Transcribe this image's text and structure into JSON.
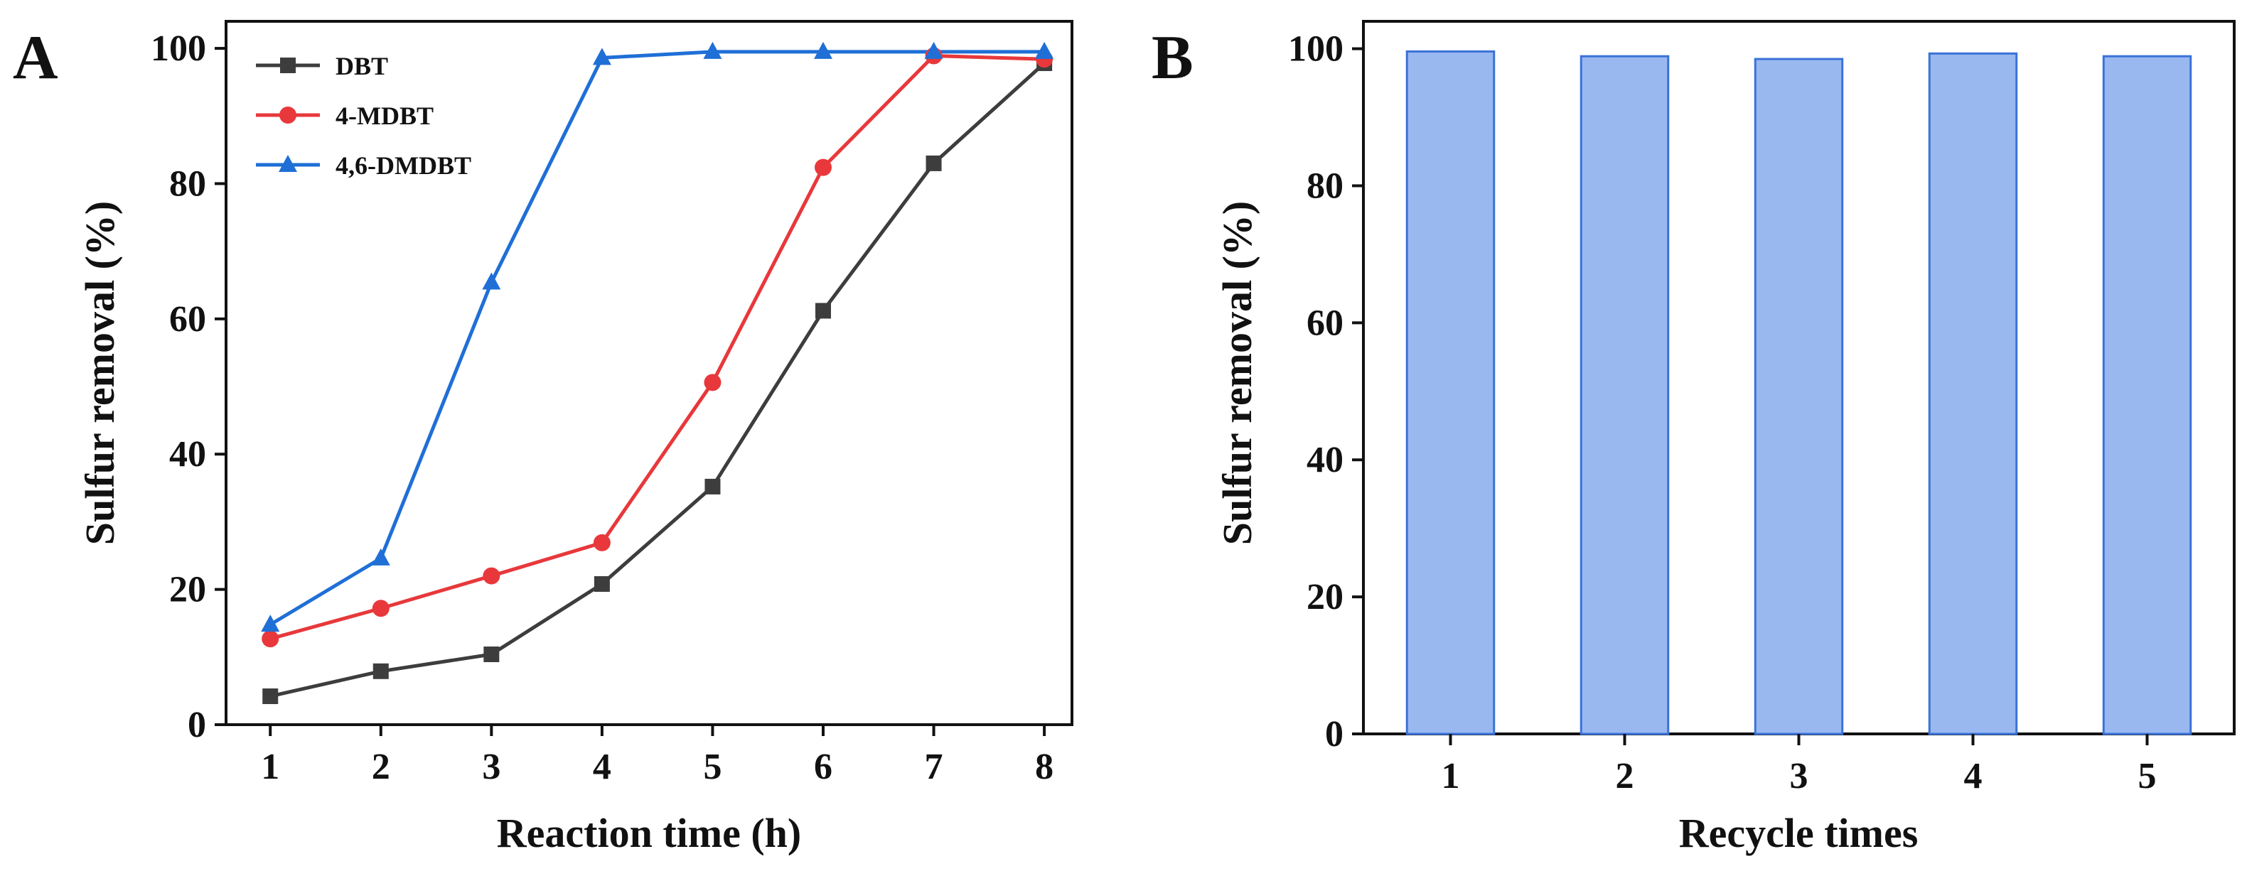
{
  "chart_data": [
    {
      "panel": "A",
      "type": "line",
      "xlabel": "Reaction time (h)",
      "ylabel": "Sulfur removal (%)",
      "x": [
        1,
        2,
        3,
        4,
        5,
        6,
        7,
        8
      ],
      "xlim": [
        0.6,
        8.25
      ],
      "ylim": [
        0,
        104
      ],
      "yticks": [
        0,
        20,
        40,
        60,
        80,
        100
      ],
      "legend_position": "top-left",
      "series": [
        {
          "name": "DBT",
          "color": "#3d3d3d",
          "marker": "square",
          "values": [
            4.2,
            7.9,
            10.4,
            20.8,
            35.2,
            61.2,
            83.0,
            97.8
          ]
        },
        {
          "name": "4-MDBT",
          "color": "#e8383b",
          "marker": "circle",
          "values": [
            12.7,
            17.2,
            22.0,
            26.9,
            50.6,
            82.4,
            98.9,
            98.4
          ]
        },
        {
          "name": "4,6-DMDBT",
          "color": "#1f6fd6",
          "marker": "triangle",
          "values": [
            14.8,
            24.6,
            65.4,
            98.6,
            99.5,
            99.5,
            99.5,
            99.5
          ]
        }
      ]
    },
    {
      "panel": "B",
      "type": "bar",
      "xlabel": "Recycle times",
      "ylabel": "Sulfur removal (%)",
      "categories": [
        "1",
        "2",
        "3",
        "4",
        "5"
      ],
      "values": [
        99.6,
        98.9,
        98.5,
        99.3,
        98.9
      ],
      "ylim": [
        0,
        104
      ],
      "yticks": [
        0,
        20,
        40,
        60,
        80,
        100
      ],
      "bar_color": "#9ab8f0",
      "bar_edge_color": "#3a72d8"
    }
  ]
}
